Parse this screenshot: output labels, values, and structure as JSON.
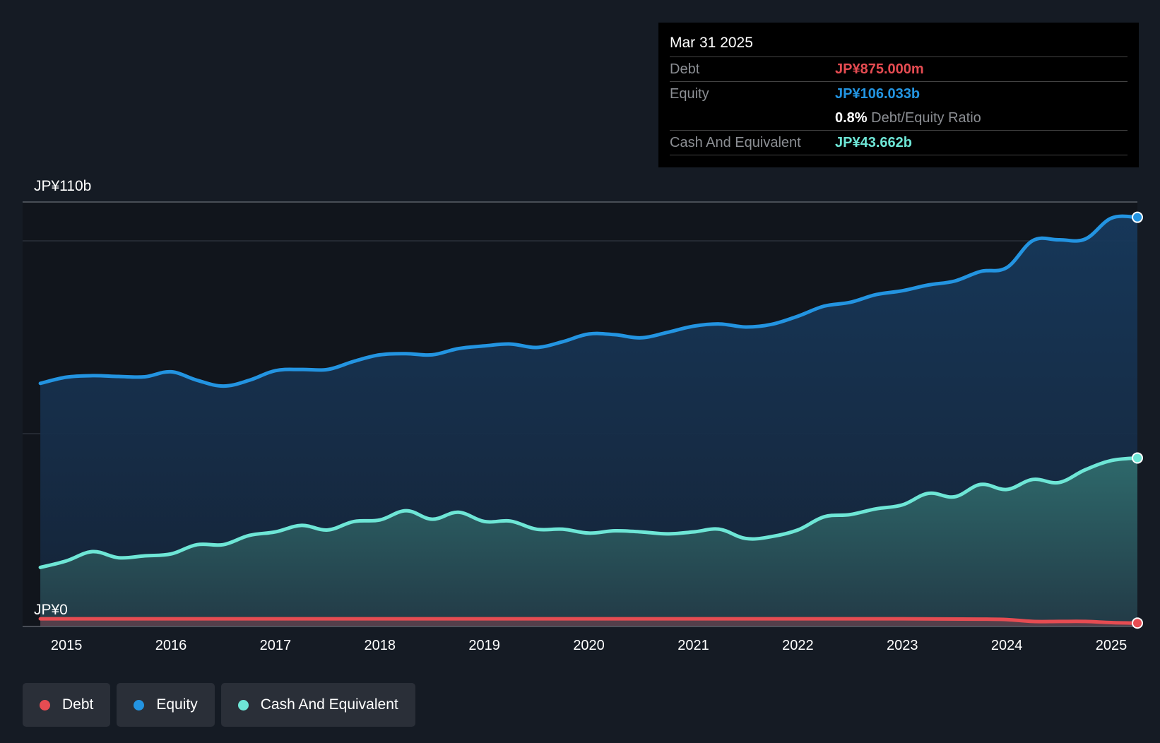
{
  "tooltip": {
    "date": "Mar 31 2025",
    "debt_label": "Debt",
    "debt_value": "JP¥875.000m",
    "equity_label": "Equity",
    "equity_value": "JP¥106.033b",
    "ratio_value": "0.8%",
    "ratio_label": "Debt/Equity Ratio",
    "cash_label": "Cash And Equivalent",
    "cash_value": "JP¥43.662b"
  },
  "legend": {
    "debt": "Debt",
    "equity": "Equity",
    "cash": "Cash And Equivalent"
  },
  "colors": {
    "debt": "#e64c52",
    "equity": "#2394e1",
    "cash": "#6ee6d6",
    "background": "#151b24"
  },
  "chart_data": {
    "type": "area",
    "title": "",
    "xlabel": "",
    "ylabel": "",
    "ylim": [
      0,
      110
    ],
    "y_axis_labels": [
      "JP¥110b",
      "JP¥0"
    ],
    "x_tick_labels": [
      "2015",
      "2016",
      "2017",
      "2018",
      "2019",
      "2020",
      "2021",
      "2022",
      "2023",
      "2024",
      "2025"
    ],
    "x_ticks": [
      2015,
      2016,
      2017,
      2018,
      2019,
      2020,
      2021,
      2022,
      2023,
      2024,
      2025
    ],
    "x_range": [
      2014.58,
      2025.25
    ],
    "units": "JP¥ billions",
    "series": [
      {
        "name": "Equity",
        "x": [
          2014.75,
          2015.0,
          2015.25,
          2015.5,
          2015.75,
          2016.0,
          2016.25,
          2016.5,
          2016.75,
          2017.0,
          2017.25,
          2017.5,
          2017.75,
          2018.0,
          2018.25,
          2018.5,
          2018.75,
          2019.0,
          2019.25,
          2019.5,
          2019.75,
          2020.0,
          2020.25,
          2020.5,
          2020.75,
          2021.0,
          2021.25,
          2021.5,
          2021.75,
          2022.0,
          2022.25,
          2022.5,
          2022.75,
          2023.0,
          2023.25,
          2023.5,
          2023.75,
          2024.0,
          2024.25,
          2024.5,
          2024.75,
          2025.0,
          2025.25
        ],
        "values": [
          63.0,
          64.6,
          65.0,
          64.8,
          64.7,
          66.0,
          63.8,
          62.3,
          63.8,
          66.3,
          66.6,
          66.6,
          68.7,
          70.4,
          70.7,
          70.4,
          72.0,
          72.7,
          73.2,
          72.3,
          73.8,
          75.8,
          75.6,
          74.8,
          76.2,
          77.8,
          78.4,
          77.6,
          78.3,
          80.4,
          83.0,
          84.0,
          86.0,
          87.0,
          88.5,
          89.5,
          92.0,
          93.0,
          100.0,
          100.2,
          100.4,
          105.8,
          106.033
        ]
      },
      {
        "name": "Cash And Equivalent",
        "x": [
          2014.75,
          2015.0,
          2015.25,
          2015.5,
          2015.75,
          2016.0,
          2016.25,
          2016.5,
          2016.75,
          2017.0,
          2017.25,
          2017.5,
          2017.75,
          2018.0,
          2018.25,
          2018.5,
          2018.75,
          2019.0,
          2019.25,
          2019.5,
          2019.75,
          2020.0,
          2020.25,
          2020.5,
          2020.75,
          2021.0,
          2021.25,
          2021.5,
          2021.75,
          2022.0,
          2022.25,
          2022.5,
          2022.75,
          2023.0,
          2023.25,
          2023.5,
          2023.75,
          2024.0,
          2024.25,
          2024.5,
          2024.75,
          2025.0,
          2025.25
        ],
        "values": [
          15.3,
          17.0,
          19.4,
          17.8,
          18.3,
          18.8,
          21.2,
          21.2,
          23.6,
          24.5,
          26.2,
          25.0,
          27.2,
          27.6,
          30.0,
          27.8,
          29.6,
          27.2,
          27.3,
          25.2,
          25.2,
          24.2,
          24.8,
          24.5,
          24.0,
          24.5,
          25.2,
          22.8,
          23.3,
          25.0,
          28.4,
          29.0,
          30.5,
          31.5,
          34.5,
          33.6,
          36.8,
          35.5,
          38.1,
          37.3,
          40.6,
          43.0,
          43.662
        ]
      },
      {
        "name": "Debt",
        "x": [
          2014.75,
          2015.0,
          2016.0,
          2017.0,
          2018.0,
          2019.0,
          2020.0,
          2021.0,
          2022.0,
          2023.0,
          2023.75,
          2024.0,
          2024.25,
          2024.5,
          2024.75,
          2025.0,
          2025.25
        ],
        "values": [
          2.0,
          2.0,
          2.0,
          2.0,
          2.0,
          2.0,
          2.0,
          2.0,
          2.0,
          2.0,
          1.9,
          1.8,
          1.3,
          1.3,
          1.3,
          1.0,
          0.875
        ]
      }
    ],
    "legend_position": "bottom-left",
    "grid": true
  }
}
